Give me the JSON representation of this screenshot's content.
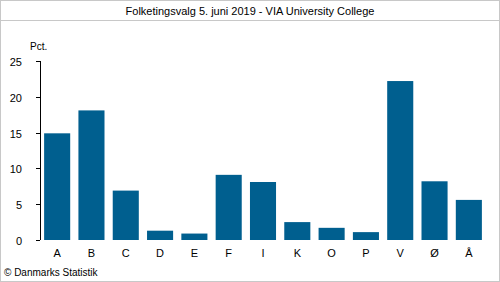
{
  "chart_data": {
    "type": "bar",
    "title": "Folketingsvalg 5. juni 2019 - VIA University College",
    "y_label": "Pct.",
    "source": "© Danmarks Statistik",
    "categories": [
      "A",
      "B",
      "C",
      "D",
      "E",
      "F",
      "I",
      "K",
      "O",
      "P",
      "V",
      "Ø",
      "Å"
    ],
    "values": [
      14.9,
      18.1,
      6.9,
      1.3,
      0.9,
      9.1,
      8.1,
      2.5,
      1.7,
      1.1,
      22.2,
      8.2,
      5.6
    ],
    "color": "#005f8f",
    "ylim": [
      0,
      25
    ],
    "yticks": [
      0,
      5,
      10,
      15,
      20,
      25
    ],
    "grid": false
  }
}
